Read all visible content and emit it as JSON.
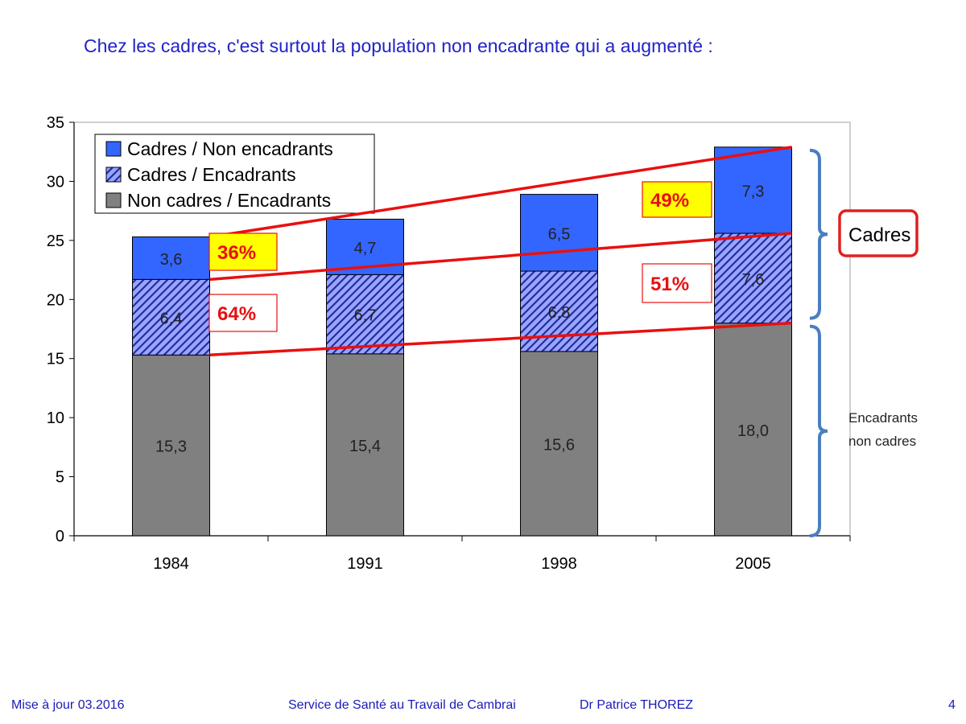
{
  "slide": {
    "title": "Chez les  cadres, c'est surtout la population non encadrante qui a augmenté :"
  },
  "chart_data": {
    "type": "bar",
    "stacked": true,
    "categories": [
      "1984",
      "1991",
      "1998",
      "2005"
    ],
    "ylim": [
      0,
      35
    ],
    "yticks": [
      "0",
      "5",
      "10",
      "15",
      "20",
      "25",
      "30",
      "35"
    ],
    "title": "",
    "xlabel": "",
    "ylabel": "",
    "legend_position": "top-left",
    "series": [
      {
        "name": "Non cadres / Encadrants",
        "values": [
          15.3,
          15.4,
          15.6,
          18.0
        ],
        "labels": [
          "15,3",
          "15,4",
          "15,6",
          "18,0"
        ],
        "color": "#808080",
        "pattern": "solid"
      },
      {
        "name": "Cadres / Encadrants",
        "values": [
          6.4,
          6.7,
          6.8,
          7.6
        ],
        "labels": [
          "6,4",
          "6,7",
          "6,8",
          "7,6"
        ],
        "color": "#2233aa",
        "pattern": "hatched"
      },
      {
        "name": "Cadres / Non encadrants",
        "values": [
          3.6,
          4.7,
          6.5,
          7.3
        ],
        "labels": [
          "3,6",
          "4,7",
          "6,5",
          "7,3"
        ],
        "color": "#3366ff",
        "pattern": "solid"
      }
    ],
    "legend_order": [
      "Cadres / Non encadrants",
      "Cadres / Encadrants",
      "Non cadres / Encadrants"
    ],
    "annotations": {
      "percent_labels": [
        {
          "text": "36%",
          "year": "1984",
          "style": "yellow"
        },
        {
          "text": "64%",
          "year": "1984",
          "style": "white"
        },
        {
          "text": "49%",
          "year": "2005",
          "style": "yellow"
        },
        {
          "text": "51%",
          "year": "2005",
          "style": "white"
        }
      ],
      "brackets": [
        {
          "label": "Cadres",
          "range": [
            18.0,
            32.9
          ],
          "boxed": true
        },
        {
          "label_lines": [
            "Encadrants",
            "non cadres"
          ],
          "range": [
            0,
            18.0
          ],
          "boxed": false
        }
      ],
      "trend_line_color": "#e81010"
    }
  },
  "footer": {
    "left": "Mise à jour 03.2016",
    "center": "Service de Santé au Travail de Cambrai",
    "author": "Dr Patrice THOREZ",
    "page": "4"
  }
}
